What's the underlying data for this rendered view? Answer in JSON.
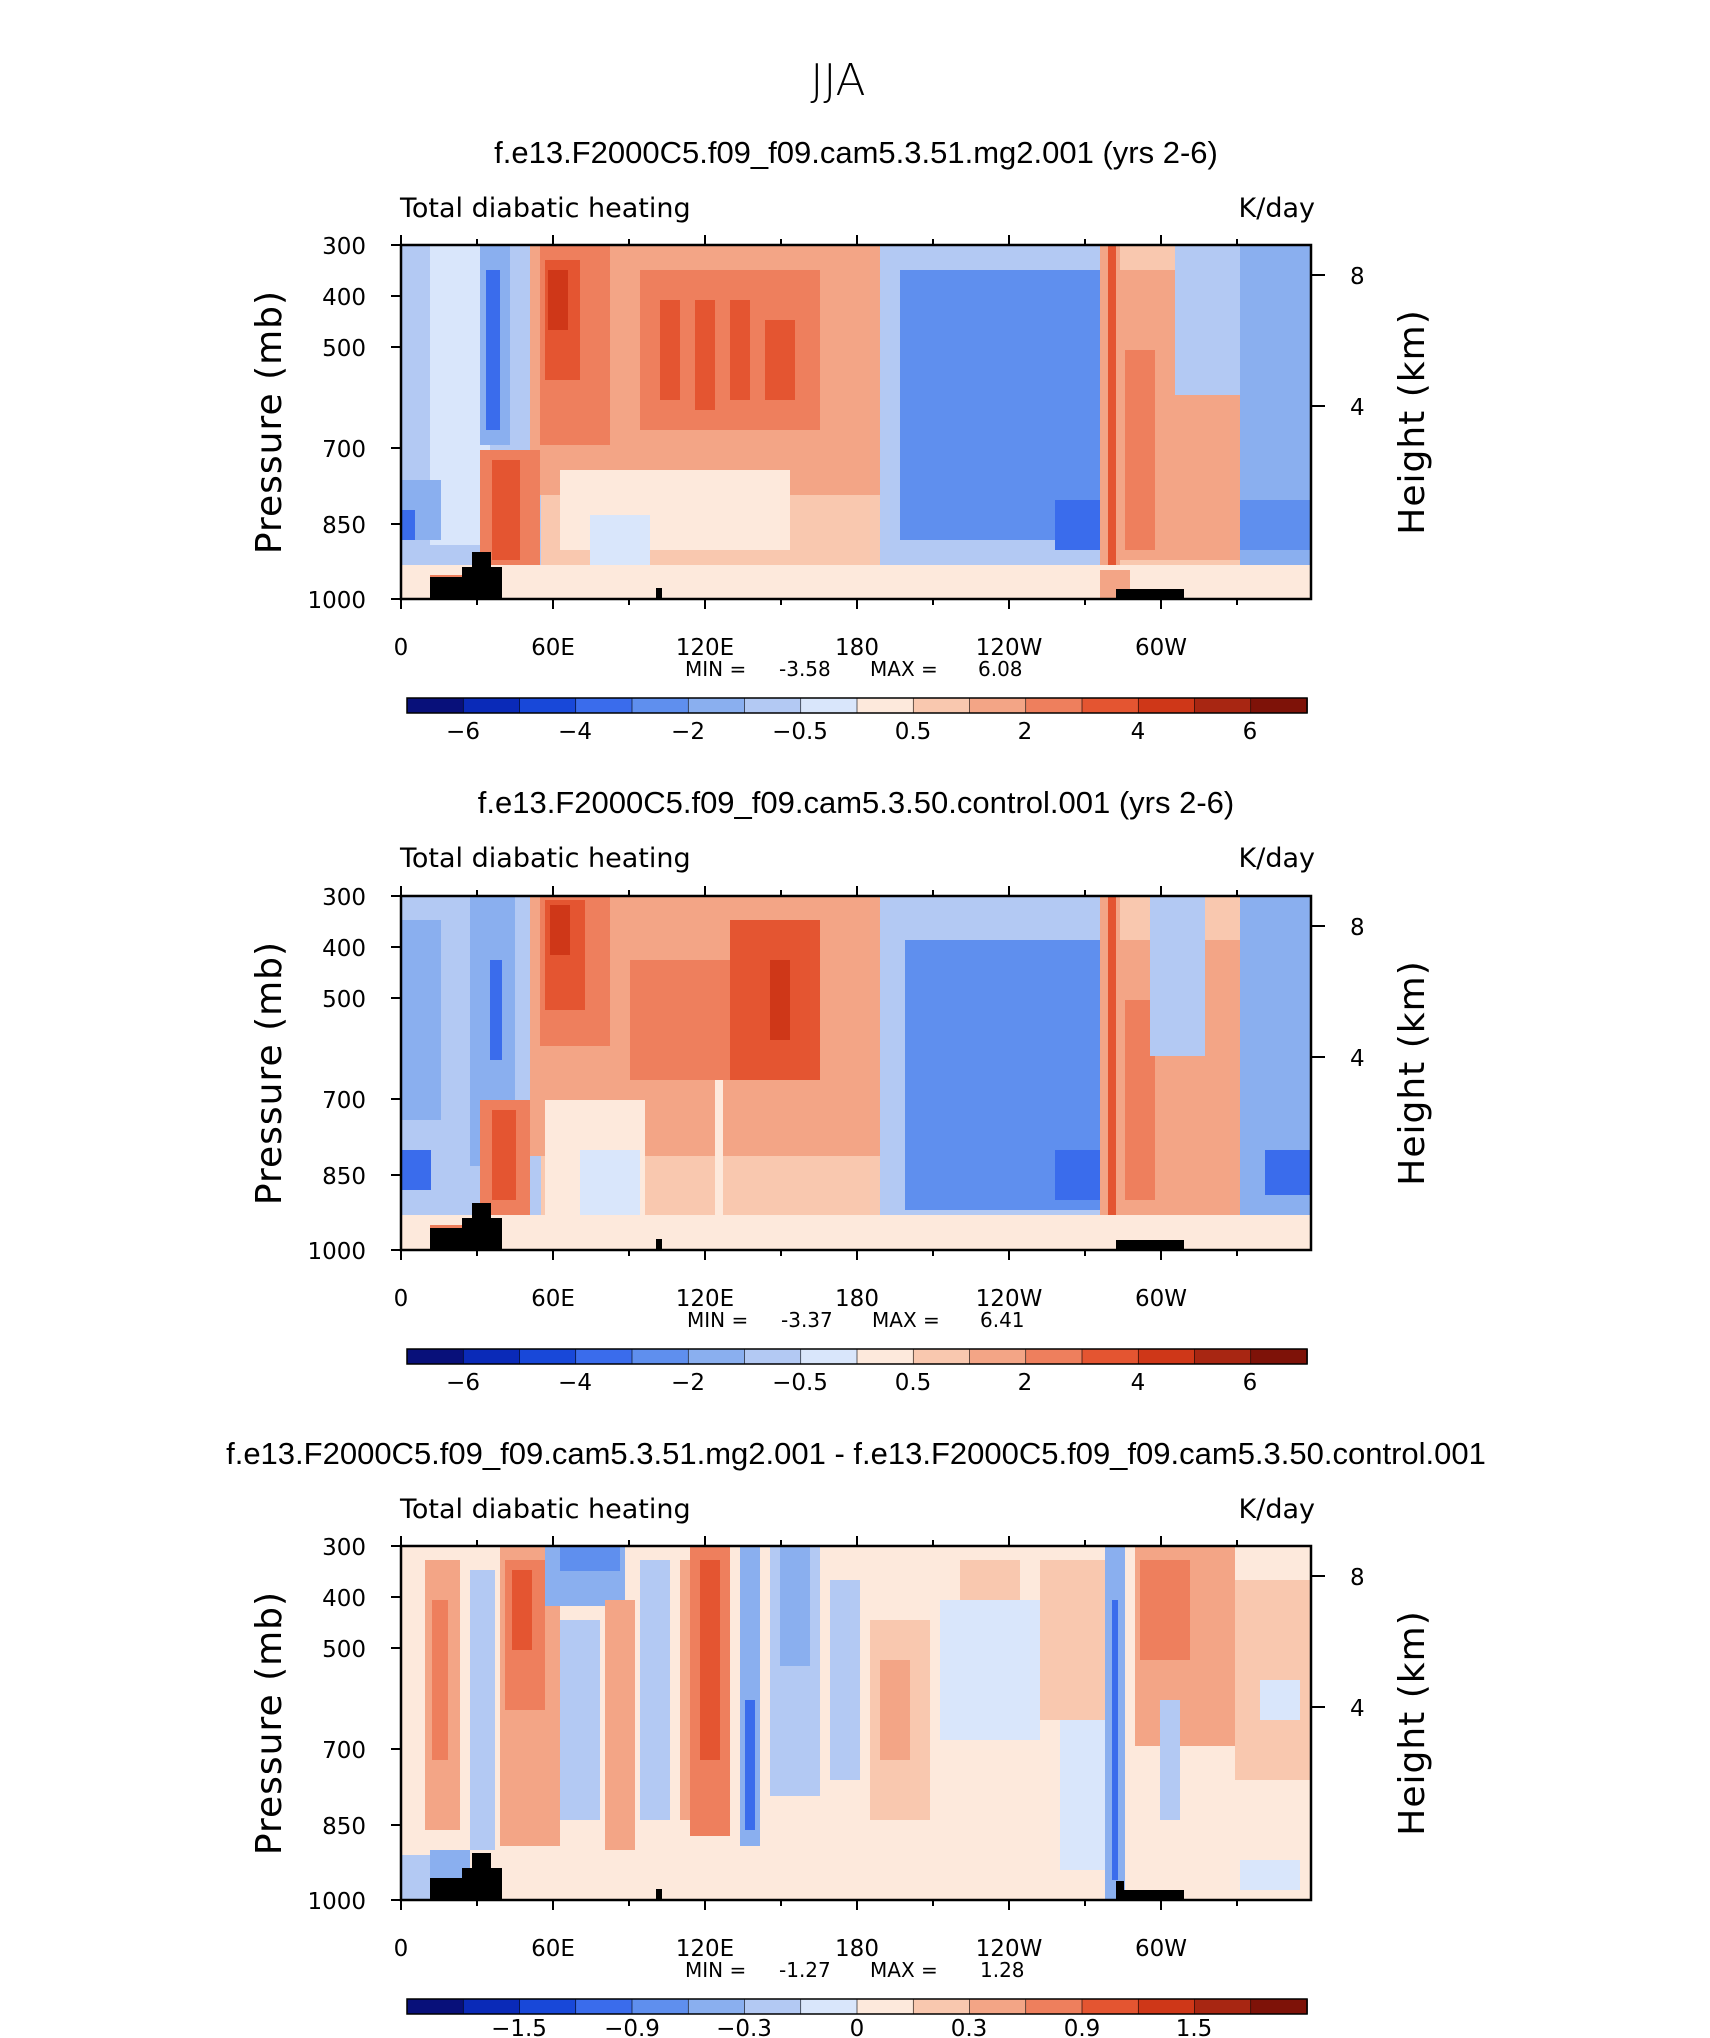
{
  "super_title": "JJA",
  "colors": {
    "ocean_mask": "#000000",
    "frame": "#000000"
  },
  "chart_data": [
    {
      "type": "heatmap",
      "title": "f.e13.F2000C5.f09_f09.cam5.3.51.mg2.001 (yrs 2-6)",
      "left_label": "Total diabatic heating",
      "right_label": "K/day",
      "ylabel": "Pressure (mb)",
      "y2label": "Height (km)",
      "x_ticks": [
        "0",
        "60E",
        "120E",
        "180",
        "120W",
        "60W"
      ],
      "y_ticks": [
        "300",
        "400",
        "500",
        "700",
        "850",
        "1000"
      ],
      "y2_ticks": [
        "8",
        "4"
      ],
      "stats": {
        "min_label": "MIN =",
        "min": "-3.58",
        "max_label": "MAX =",
        "max": "6.08"
      },
      "colorbar_labels": [
        "−6",
        "−4",
        "−2",
        "−0.5",
        "0.5",
        "2",
        "4",
        "6"
      ],
      "colorbar_colors": [
        "#08107a",
        "#0a2ab8",
        "#1848d9",
        "#3a6cec",
        "#5f8fee",
        "#8aafef",
        "#b3c9f3",
        "#d9e6fb",
        "#fde9dc",
        "#f9c8af",
        "#f3a586",
        "#ee7f5d",
        "#e45531",
        "#cf3718",
        "#a82612",
        "#7e1208"
      ]
    },
    {
      "type": "heatmap",
      "title": "f.e13.F2000C5.f09_f09.cam5.3.50.control.001 (yrs 2-6)",
      "left_label": "Total diabatic heating",
      "right_label": "K/day",
      "ylabel": "Pressure (mb)",
      "y2label": "Height (km)",
      "x_ticks": [
        "0",
        "60E",
        "120E",
        "180",
        "120W",
        "60W"
      ],
      "y_ticks": [
        "300",
        "400",
        "500",
        "700",
        "850",
        "1000"
      ],
      "y2_ticks": [
        "8",
        "4"
      ],
      "stats": {
        "min_label": "MIN =",
        "min": "-3.37",
        "max_label": "MAX =",
        "max": "6.41"
      },
      "colorbar_labels": [
        "−6",
        "−4",
        "−2",
        "−0.5",
        "0.5",
        "2",
        "4",
        "6"
      ],
      "colorbar_colors": [
        "#08107a",
        "#0a2ab8",
        "#1848d9",
        "#3a6cec",
        "#5f8fee",
        "#8aafef",
        "#b3c9f3",
        "#d9e6fb",
        "#fde9dc",
        "#f9c8af",
        "#f3a586",
        "#ee7f5d",
        "#e45531",
        "#cf3718",
        "#a82612",
        "#7e1208"
      ]
    },
    {
      "type": "heatmap",
      "title": "f.e13.F2000C5.f09_f09.cam5.3.51.mg2.001 - f.e13.F2000C5.f09_f09.cam5.3.50.control.001",
      "left_label": "Total diabatic heating",
      "right_label": "K/day",
      "ylabel": "Pressure (mb)",
      "y2label": "Height (km)",
      "x_ticks": [
        "0",
        "60E",
        "120E",
        "180",
        "120W",
        "60W"
      ],
      "y_ticks": [
        "300",
        "400",
        "500",
        "700",
        "850",
        "1000"
      ],
      "y2_ticks": [
        "8",
        "4"
      ],
      "stats": {
        "min_label": "MIN =",
        "min": "-1.27",
        "max_label": "MAX =",
        "max": "1.28"
      },
      "colorbar_labels": [
        "−1.5",
        "−0.9",
        "−0.3",
        "0",
        "0.3",
        "0.9",
        "1.5"
      ],
      "colorbar_colors": [
        "#08107a",
        "#0a2ab8",
        "#1848d9",
        "#3a6cec",
        "#5f8fee",
        "#8aafef",
        "#b3c9f3",
        "#d9e6fb",
        "#fde9dc",
        "#f9c8af",
        "#f3a586",
        "#ee7f5d",
        "#e45531",
        "#cf3718",
        "#a82612",
        "#7e1208"
      ]
    }
  ]
}
